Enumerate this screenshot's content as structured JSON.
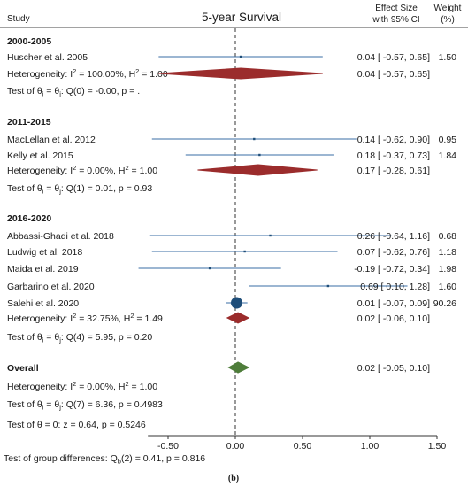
{
  "header": {
    "study": "Study",
    "title": "5-year Survival",
    "effect_line1": "Effect Size",
    "effect_line2": "with 95% CI",
    "weight_line1": "Weight",
    "weight_line2": "(%)"
  },
  "chart_data": {
    "type": "forest",
    "title": "5-year Survival",
    "xlim": [
      -0.65,
      1.5
    ],
    "x_ticks": [
      "-0.50",
      "0.00",
      "0.50",
      "1.00",
      "1.50"
    ],
    "x_tick_values": [
      -0.5,
      0.0,
      0.5,
      1.0,
      1.5
    ],
    "reference_line": 0.0,
    "colors": {
      "study": "#3a6ea5",
      "subgroup": "#9b2c2c",
      "overall": "#4e7d3a",
      "axis": "#333333"
    },
    "groups": [
      {
        "name": "2000-2005",
        "studies": [
          {
            "label": "Huscher et al. 2005",
            "es": 0.04,
            "lo": -0.57,
            "hi": 0.65,
            "ci_text": "0.04 [ -0.57,  0.65]",
            "weight": "1.50"
          }
        ],
        "pooled": {
          "es": 0.04,
          "lo": -0.57,
          "hi": 0.65,
          "ci_text": "0.04 [ -0.57,  0.65]"
        },
        "heterogeneity": {
          "prefix": "Heterogeneity: I",
          "mid": " = 100.00%, H",
          "suffix": " = 1.00"
        },
        "test": {
          "prefix": "Test of θ",
          "mid1": " = θ",
          "suffix": ": Q(0) = -0.00, p = ."
        }
      },
      {
        "name": "2011-2015",
        "studies": [
          {
            "label": "MacLellan et al. 2012",
            "es": 0.14,
            "lo": -0.62,
            "hi": 0.9,
            "ci_text": "0.14 [ -0.62,  0.90]",
            "weight": "0.95"
          },
          {
            "label": "Kelly et al. 2015",
            "es": 0.18,
            "lo": -0.37,
            "hi": 0.73,
            "ci_text": "0.18 [ -0.37,  0.73]",
            "weight": "1.84"
          }
        ],
        "pooled": {
          "es": 0.17,
          "lo": -0.28,
          "hi": 0.61,
          "ci_text": "0.17 [ -0.28,  0.61]"
        },
        "heterogeneity": {
          "prefix": "Heterogeneity: I",
          "mid": " = 0.00%, H",
          "suffix": " = 1.00"
        },
        "test": {
          "prefix": "Test of θ",
          "mid1": " = θ",
          "suffix": ": Q(1) = 0.01, p = 0.93"
        }
      },
      {
        "name": "2016-2020",
        "studies": [
          {
            "label": "Abbassi-Ghadi et al. 2018",
            "es": 0.26,
            "lo": -0.64,
            "hi": 1.16,
            "ci_text": "0.26 [ -0.64,  1.16]",
            "weight": "0.68"
          },
          {
            "label": "Ludwig et al. 2018",
            "es": 0.07,
            "lo": -0.62,
            "hi": 0.76,
            "ci_text": "0.07 [ -0.62,  0.76]",
            "weight": "1.18"
          },
          {
            "label": "Maida et al. 2019",
            "es": -0.19,
            "lo": -0.72,
            "hi": 0.34,
            "ci_text": "-0.19 [ -0.72,  0.34]",
            "weight": "1.98"
          },
          {
            "label": "Garbarino et al. 2020",
            "es": 0.69,
            "lo": 0.1,
            "hi": 1.28,
            "ci_text": "0.69 [  0.10,  1.28]",
            "weight": "1.60"
          },
          {
            "label": "Salehi et al. 2020",
            "es": 0.01,
            "lo": -0.07,
            "hi": 0.09,
            "ci_text": "0.01 [ -0.07,  0.09]",
            "weight": "90.26"
          }
        ],
        "pooled": {
          "es": 0.02,
          "lo": -0.06,
          "hi": 0.1,
          "ci_text": "0.02 [ -0.06,  0.10]"
        },
        "heterogeneity": {
          "prefix": "Heterogeneity: I",
          "mid": " = 32.75%, H",
          "suffix": " = 1.49"
        },
        "test": {
          "prefix": "Test of θ",
          "mid1": " = θ",
          "suffix": ": Q(4) = 5.95, p = 0.20"
        }
      }
    ],
    "overall": {
      "label": "Overall",
      "es": 0.02,
      "lo": -0.05,
      "hi": 0.1,
      "ci_text": "0.02 [ -0.05,  0.10]",
      "heterogeneity": {
        "prefix": "Heterogeneity: I",
        "mid": " = 0.00%, H",
        "suffix": " = 1.00"
      },
      "test_q": {
        "prefix": "Test of θ",
        "mid1": " = θ",
        "suffix": ": Q(7) = 6.36, p = 0.4983"
      },
      "test_z": "Test of θ = 0: z = 0.64, p = 0.5246"
    },
    "group_diff": {
      "prefix": "Test of group differences: Q",
      "sub": "b",
      "suffix": "(2) = 0.41, p = 0.816"
    }
  },
  "caption": "(b)"
}
